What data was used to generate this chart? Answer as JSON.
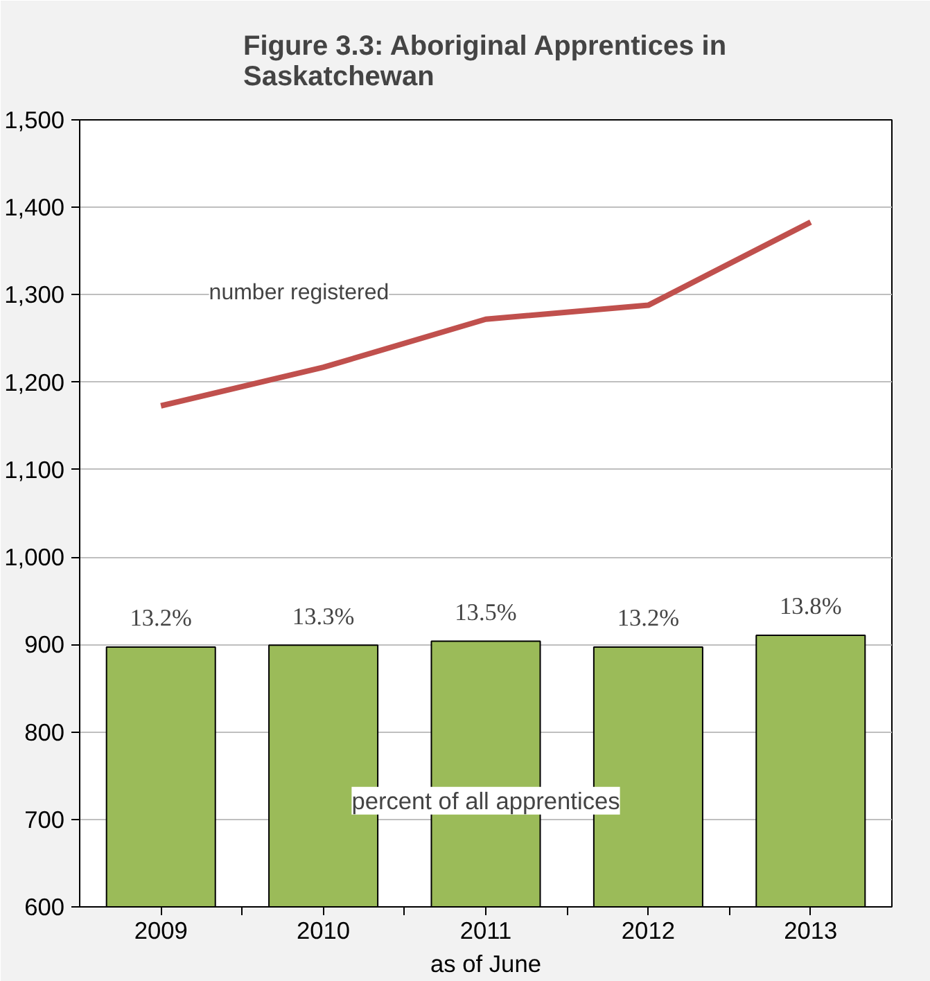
{
  "chart_data": {
    "type": "bar",
    "title": "Figure 3.3: Aboriginal Apprentices in Saskatchewan",
    "xlabel": "as of June",
    "categories": [
      "2009",
      "2010",
      "2011",
      "2012",
      "2013"
    ],
    "series": [
      {
        "name": "percent of all apprentices",
        "axis": "y2",
        "color": "#9bbb59",
        "values": [
          13.2,
          13.3,
          13.5,
          13.2,
          13.8
        ],
        "value_labels": [
          "13.2%",
          "13.3%",
          "13.5%",
          "13.2%",
          "13.8%"
        ]
      },
      {
        "name": "number registered",
        "type": "line",
        "color": "#c0504d",
        "values": [
          1173,
          1217,
          1272,
          1288,
          1383
        ]
      }
    ],
    "ylim": [
      600,
      1500
    ],
    "yticks": [
      {
        "value": 600,
        "label": "600"
      },
      {
        "value": 700,
        "label": "700"
      },
      {
        "value": 800,
        "label": "800"
      },
      {
        "value": 900,
        "label": "900"
      },
      {
        "value": 1000,
        "label": "1,000"
      },
      {
        "value": 1100,
        "label": "1,100"
      },
      {
        "value": 1200,
        "label": "1,200"
      },
      {
        "value": 1300,
        "label": "1,300"
      },
      {
        "value": 1400,
        "label": "1,400"
      },
      {
        "value": 1500,
        "label": "1,500"
      }
    ],
    "y2lim": [
      0,
      40
    ],
    "tick_labels": "xy",
    "grid": "y"
  }
}
